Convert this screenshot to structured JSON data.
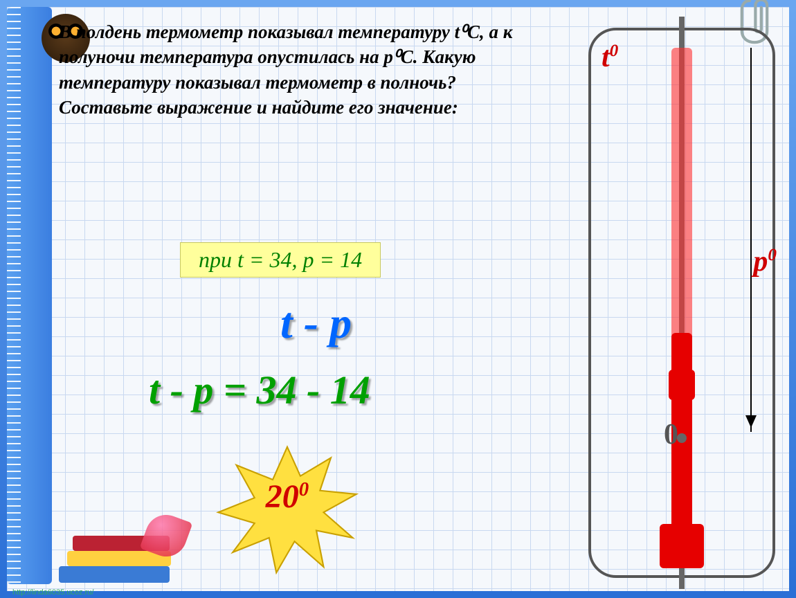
{
  "problem": "В полдень термометр показывал температуру t⁰C, а к полуночи температура опустилась на p⁰C. Какую температуру показывал термометр в полночь? Составьте выражение и найдите его значение:",
  "given": "при t = 34, p = 14",
  "formula_short": "t - p",
  "formula_long": "t - p = 34 - 14",
  "answer_html": "20<sup>0</sup>",
  "thermo": {
    "t_label_html": "t<sup>0</sup>",
    "p_label_html": "p<sup>0</sup>",
    "zero": "0"
  },
  "colors": {
    "grid_line": "#c8d8f0",
    "frame_border": "#555555",
    "mercury": "#e60000",
    "mercury_light": "#ff3030",
    "text_green": "#00a000",
    "text_blue": "#0066ff",
    "text_red": "#d00000",
    "highlight_bg": "#ffff9c",
    "star_fill": "#ffe040"
  },
  "footer": "http://linda6035.ucoz.ru/"
}
